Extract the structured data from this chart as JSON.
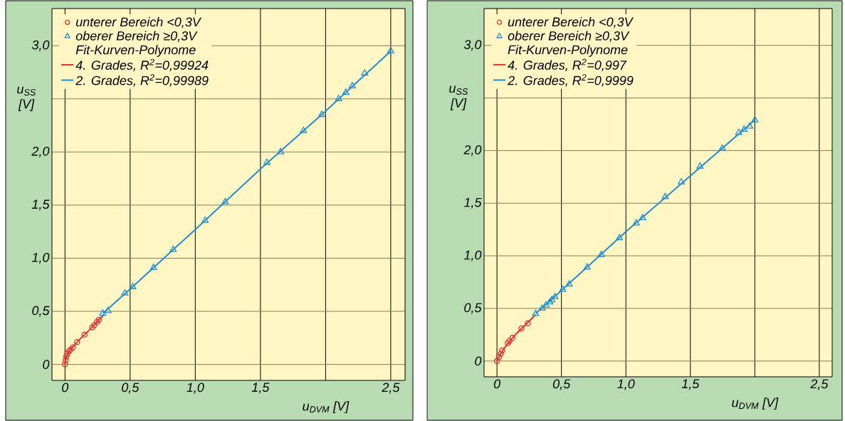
{
  "chart_data": [
    {
      "type": "scatter",
      "xlabel": "u$_{DVM}$ [V]",
      "ylabel": "u$_{SS}$ [V]",
      "legend_title": "Fit-Kurven-Polynome",
      "legend": "top left",
      "grid": true,
      "xlim": [
        -0.1,
        2.61
      ],
      "ylim": [
        -0.15,
        3.35
      ],
      "xticks": [
        0,
        {
          "value": 0.5,
          "label": "0,5"
        },
        {
          "value": 1.0,
          "label": "1,0"
        },
        {
          "value": 1.5,
          "label": "1,5"
        },
        {
          "value": 2.0,
          "label": null
        },
        {
          "value": 2.5,
          "label": "2,5"
        }
      ],
      "yticks": [
        0,
        {
          "value": 0.5,
          "label": "0,5"
        },
        {
          "value": 1.0,
          "label": "1,0"
        },
        {
          "value": 1.5,
          "label": "1,5"
        },
        {
          "value": 2.0,
          "label": "2,0"
        },
        {
          "value": 2.5,
          "label": null
        },
        {
          "value": 3.0,
          "label": "3,0"
        }
      ],
      "series": [
        {
          "name": "unterer Bereich <0,3V",
          "color": "#e3322b",
          "marker": "circle",
          "x": [
            0,
            0.005,
            0.01,
            0.018,
            0.03,
            0.043,
            0.06,
            0.093,
            0.15,
            0.21,
            0.225,
            0.245,
            0.26
          ],
          "values": [
            0,
            0.04,
            0.075,
            0.1,
            0.125,
            0.14,
            0.16,
            0.21,
            0.28,
            0.35,
            0.37,
            0.4,
            0.42
          ]
        },
        {
          "name": "oberer Bereich ≥0,3V",
          "color": "#1f8fcf",
          "marker": "triangle",
          "x": [
            0.29,
            0.33,
            0.46,
            0.52,
            0.68,
            0.83,
            1.075,
            1.23,
            1.55,
            1.655,
            1.83,
            1.97,
            2.1,
            2.155,
            2.205,
            2.3,
            2.5
          ],
          "values": [
            0.48,
            0.505,
            0.67,
            0.73,
            0.91,
            1.08,
            1.355,
            1.53,
            1.9,
            2.0,
            2.2,
            2.35,
            2.5,
            2.56,
            2.62,
            2.74,
            2.95
          ]
        },
        {
          "type": "line",
          "name": "4. Grades, R$^{2}$=0,99924",
          "color": "#e3322b",
          "x": [
            0,
            0.01,
            0.03,
            0.06,
            0.1,
            0.15,
            0.2,
            0.26,
            0.3
          ],
          "values": [
            0,
            0.07,
            0.125,
            0.165,
            0.22,
            0.28,
            0.34,
            0.42,
            0.47
          ]
        },
        {
          "type": "line",
          "name": "2. Grades, R$^{2}$=0,99989",
          "color": "#1f8fcf",
          "x": [
            0.29,
            0.5,
            1.0,
            1.5,
            2.0,
            2.5
          ],
          "values": [
            0.48,
            0.71,
            1.27,
            1.84,
            2.385,
            2.95
          ]
        }
      ]
    },
    {
      "type": "scatter",
      "xlabel": "u$_{DVM}$ [V]",
      "ylabel": "u$_{SS}$ [V]",
      "legend_title": "Fit-Kurven-Polynome",
      "legend": "top left",
      "grid": true,
      "xlim": [
        -0.1,
        2.6
      ],
      "ylim": [
        -0.15,
        3.35
      ],
      "xticks": [
        0,
        {
          "value": 0.5,
          "label": "0,5"
        },
        {
          "value": 1.0,
          "label": "1,0"
        },
        {
          "value": 1.5,
          "label": "1,5"
        },
        {
          "value": 2.0,
          "label": null
        },
        {
          "value": 2.5,
          "label": "2,5"
        }
      ],
      "yticks": [
        0,
        {
          "value": 0.5,
          "label": "0,5"
        },
        {
          "value": 1.0,
          "label": "1,0"
        },
        {
          "value": 1.5,
          "label": "1,5"
        },
        {
          "value": 2.0,
          "label": "2,0"
        },
        {
          "value": 2.5,
          "label": null
        },
        {
          "value": 3.0,
          "label": "3,0"
        }
      ],
      "series": [
        {
          "name": "unterer Bereich <0,3V",
          "color": "#e3322b",
          "marker": "circle",
          "x": [
            0,
            0.016,
            0.03,
            0.04,
            0.084,
            0.096,
            0.12,
            0.19,
            0.24
          ],
          "values": [
            0,
            0.04,
            0.07,
            0.1,
            0.17,
            0.19,
            0.22,
            0.31,
            0.36
          ]
        },
        {
          "name": "oberer Bereich ≥0,3V",
          "color": "#1f8fcf",
          "marker": "triangle",
          "x": [
            0.3,
            0.35,
            0.38,
            0.41,
            0.425,
            0.45,
            0.51,
            0.56,
            0.7,
            0.81,
            0.95,
            1.08,
            1.13,
            1.305,
            1.43,
            1.575,
            1.747,
            1.875,
            1.916,
            1.96,
            2.0
          ],
          "values": [
            0.45,
            0.5,
            0.53,
            0.56,
            0.58,
            0.61,
            0.68,
            0.73,
            0.89,
            1.01,
            1.17,
            1.31,
            1.36,
            1.56,
            1.7,
            1.85,
            2.02,
            2.17,
            2.2,
            2.23,
            2.29
          ]
        },
        {
          "type": "line",
          "name": "4. Grades, R$^{2}$=0,997",
          "color": "#e3322b",
          "x": [
            0,
            0.02,
            0.05,
            0.1,
            0.15,
            0.2,
            0.25,
            0.3
          ],
          "values": [
            0,
            0.05,
            0.11,
            0.19,
            0.26,
            0.32,
            0.38,
            0.44
          ]
        },
        {
          "type": "line",
          "name": "2. Grades, R$^{2}$=0,9999",
          "color": "#1f8fcf",
          "x": [
            0.3,
            0.5,
            1.0,
            1.5,
            2.0
          ],
          "values": [
            0.45,
            0.67,
            1.23,
            1.76,
            2.29
          ]
        }
      ]
    }
  ]
}
